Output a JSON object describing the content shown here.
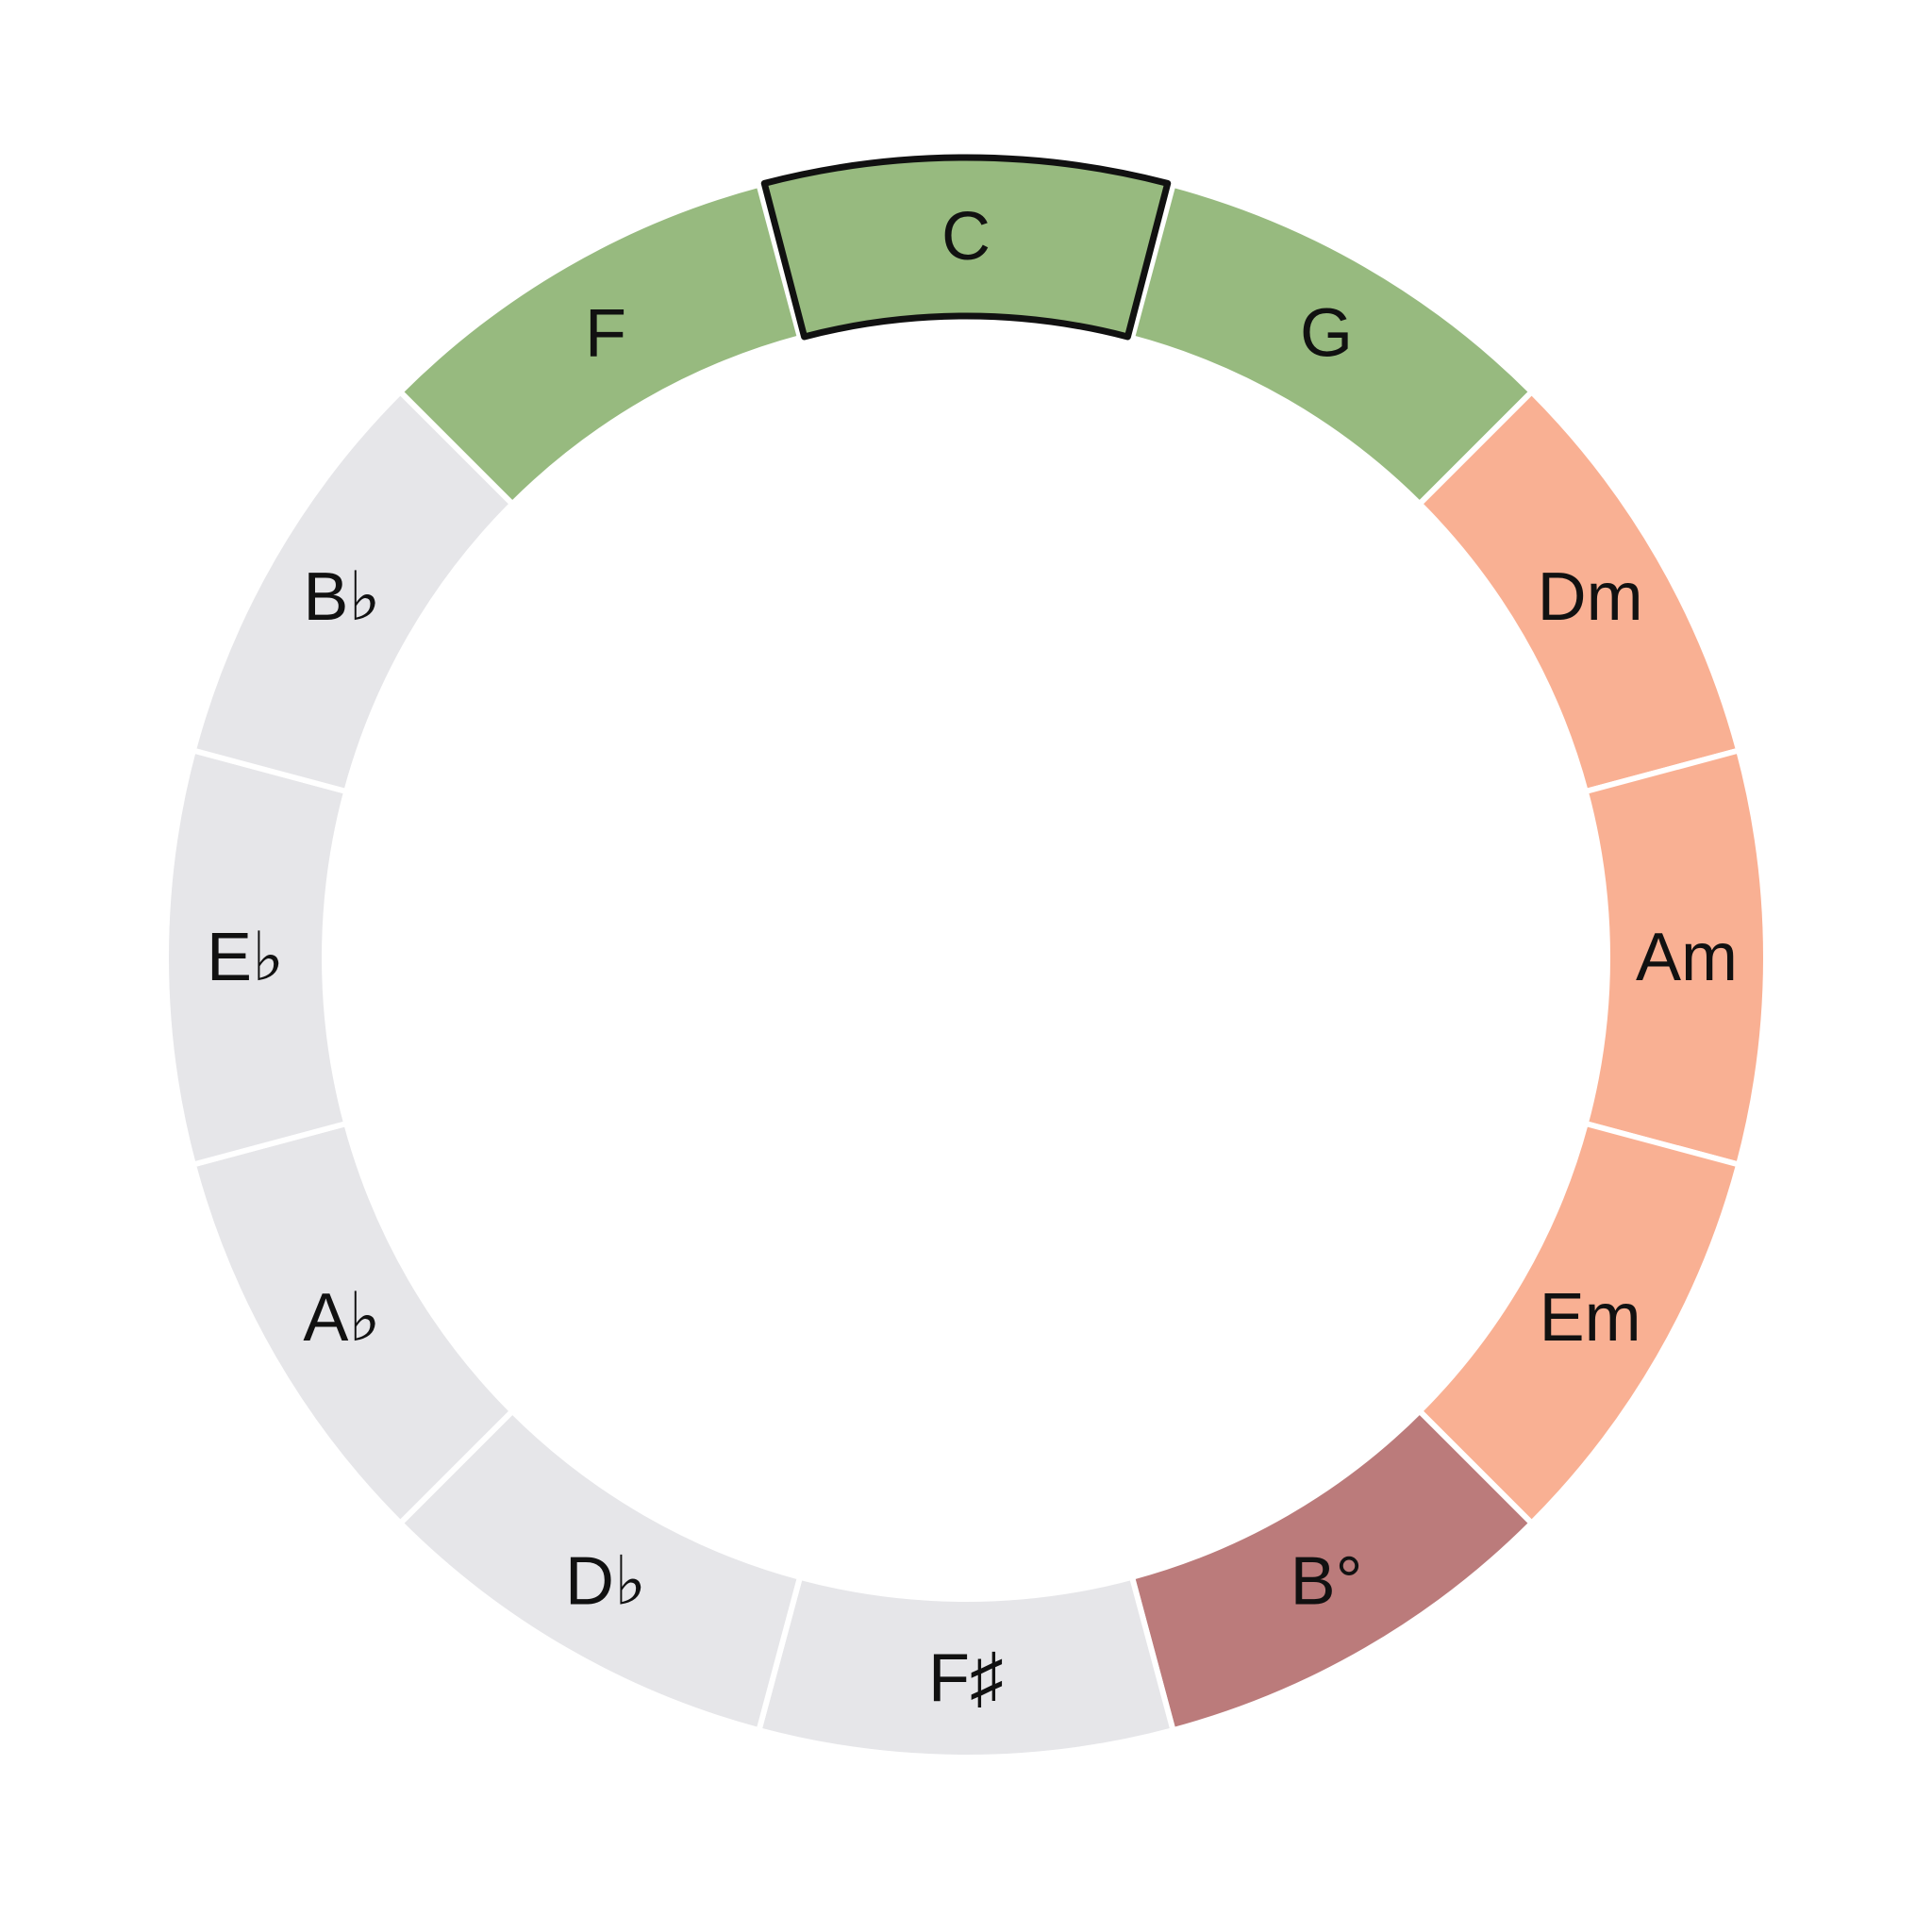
{
  "wheel": {
    "selected_key": "C",
    "colors": {
      "major": "#97ba7f",
      "minor": "#f9b093",
      "diminished": "#bb7b7b",
      "other": "#e6e6e9",
      "selected_outline": "#111111",
      "separator": "#ffffff"
    },
    "segments": [
      {
        "label": "C",
        "role": "major",
        "selected": true,
        "name": "c"
      },
      {
        "label": "G",
        "role": "major",
        "selected": false,
        "name": "g"
      },
      {
        "label": "Dm",
        "role": "minor",
        "selected": false,
        "name": "dm"
      },
      {
        "label": "Am",
        "role": "minor",
        "selected": false,
        "name": "am"
      },
      {
        "label": "Em",
        "role": "minor",
        "selected": false,
        "name": "em"
      },
      {
        "label": "B°",
        "role": "diminished",
        "selected": false,
        "name": "b-dim"
      },
      {
        "label": "F♯",
        "role": "other",
        "selected": false,
        "name": "f-sharp"
      },
      {
        "label": "D♭",
        "role": "other",
        "selected": false,
        "name": "d-flat"
      },
      {
        "label": "A♭",
        "role": "other",
        "selected": false,
        "name": "a-flat"
      },
      {
        "label": "E♭",
        "role": "other",
        "selected": false,
        "name": "e-flat"
      },
      {
        "label": "B♭",
        "role": "other",
        "selected": false,
        "name": "b-flat"
      },
      {
        "label": "F",
        "role": "major",
        "selected": false,
        "name": "f"
      }
    ]
  }
}
